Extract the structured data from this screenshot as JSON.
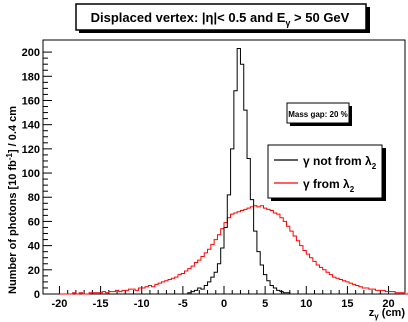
{
  "chart_data": {
    "type": "line",
    "title_main": "Displaced vertex: |η|< 0.5 and E",
    "title_sub": "γ",
    "title_end": " > 50 GeV",
    "xlabel": "z",
    "xlabel_sub": "γ",
    "xlabel_unit": " (cm)",
    "ylabel_main": "Number of photons [10 fb",
    "ylabel_sup": "-1",
    "ylabel_end": "] / 0.4 cm",
    "xlim": [
      -22,
      22
    ],
    "ylim": [
      0,
      210
    ],
    "x_ticks": [
      -20,
      -15,
      -10,
      -5,
      0,
      5,
      10,
      15,
      20
    ],
    "y_ticks": [
      0,
      20,
      40,
      60,
      80,
      100,
      120,
      140,
      160,
      180,
      200
    ],
    "grid": false,
    "annotation": "Mass gap: 20 %",
    "legend_position": "middle-right",
    "series": [
      {
        "name": "γ not from λ",
        "name_main": "γ not from ",
        "name_lambda": "λ",
        "name_sub": "2",
        "color": "#000000",
        "bin_start": -4.4,
        "bin_width": 0.4,
        "values": [
          1,
          2,
          3,
          5,
          4,
          7,
          10,
          14,
          18,
          25,
          38,
          55,
          82,
          120,
          168,
          203,
          190,
          152,
          112,
          78,
          52,
          35,
          24,
          16,
          11,
          7,
          5,
          3,
          2,
          1,
          1
        ]
      },
      {
        "name": "γ from λ",
        "name_main": "γ from ",
        "name_lambda": "λ",
        "name_sub": "2",
        "color": "#ff0000",
        "bin_start": -20,
        "bin_width": 0.4,
        "values": [
          0,
          0,
          0,
          0,
          1,
          0,
          1,
          0,
          0,
          1,
          1,
          1,
          1,
          2,
          1,
          2,
          2,
          3,
          2,
          3,
          3,
          4,
          4,
          3,
          5,
          5,
          6,
          7,
          6,
          8,
          9,
          10,
          11,
          12,
          13,
          14,
          16,
          17,
          19,
          21,
          23,
          26,
          28,
          31,
          34,
          37,
          41,
          45,
          49,
          54,
          59,
          63,
          66,
          67,
          68,
          69,
          70,
          71,
          72,
          73,
          72,
          73,
          71,
          70,
          69,
          67,
          66,
          63,
          60,
          56,
          52,
          48,
          44,
          40,
          36,
          33,
          30,
          27,
          24,
          22,
          20,
          18,
          16,
          14,
          13,
          12,
          11,
          10,
          9,
          8,
          7,
          6,
          5,
          5,
          4,
          4,
          3,
          3,
          3,
          2,
          2,
          2,
          1,
          1,
          1,
          0,
          1,
          0,
          0,
          0
        ]
      }
    ]
  }
}
